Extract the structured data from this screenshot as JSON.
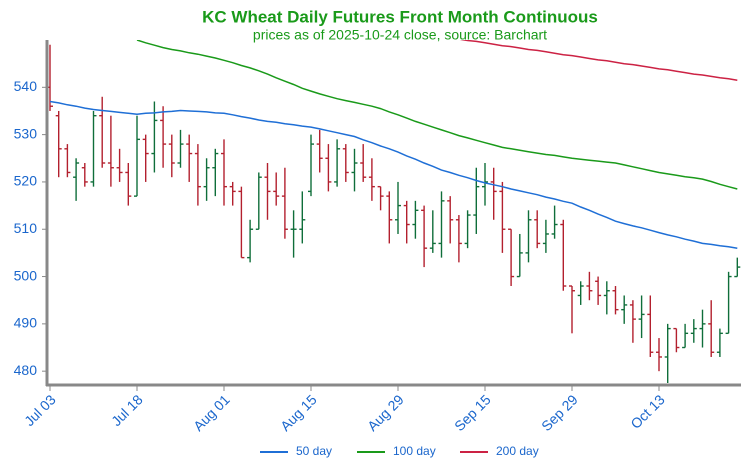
{
  "chart_data": {
    "type": "ohlc",
    "title": "KC Wheat Daily Futures Front Month Continuous",
    "subtitle": "prices as of 2025-10-24 close, source: Barchart",
    "categories": [
      "Jul 03",
      null,
      null,
      null,
      null,
      null,
      null,
      null,
      null,
      null,
      "Jul 18",
      null,
      null,
      null,
      null,
      null,
      null,
      null,
      null,
      null,
      "Aug 01",
      null,
      null,
      null,
      null,
      null,
      null,
      null,
      null,
      null,
      "Aug 15",
      null,
      null,
      null,
      null,
      null,
      null,
      null,
      null,
      null,
      "Aug 29",
      null,
      null,
      null,
      null,
      null,
      null,
      null,
      null,
      null,
      "Sep 15",
      null,
      null,
      null,
      null,
      null,
      null,
      null,
      null,
      null,
      "Sep 29",
      null,
      null,
      null,
      null,
      null,
      null,
      null,
      null,
      null,
      "Oct 13",
      null,
      null,
      null,
      null,
      null,
      null,
      null,
      null,
      null
    ],
    "open": [
      540,
      534,
      527,
      521,
      523,
      520,
      534,
      524,
      523,
      522,
      517,
      529,
      526,
      533,
      528,
      524,
      528,
      526,
      519,
      523,
      526,
      519,
      518,
      504,
      510,
      521,
      518,
      517,
      510,
      510,
      518,
      528,
      525,
      520,
      527,
      522,
      524,
      521,
      519,
      517,
      512,
      515,
      511,
      514,
      506,
      507,
      516,
      512,
      507,
      513,
      519,
      520,
      518,
      510,
      500,
      505,
      512,
      507,
      509,
      511,
      498,
      496,
      498,
      499,
      496,
      497,
      493,
      494,
      491,
      492,
      484,
      483,
      489,
      485,
      488,
      489,
      490,
      484,
      488,
      500
    ],
    "high": [
      549,
      535,
      528,
      525,
      524,
      535,
      538,
      534,
      527,
      524,
      534,
      530,
      537,
      536,
      530,
      531,
      530,
      528,
      525,
      527,
      529,
      520,
      519,
      512,
      522,
      524,
      522,
      523,
      514,
      518,
      530,
      531,
      528,
      529,
      528,
      527,
      528,
      525,
      519,
      518,
      520,
      516,
      516,
      515,
      514,
      518,
      517,
      513,
      514,
      523,
      524,
      523,
      520,
      510,
      509,
      514,
      514,
      512,
      515,
      512,
      498,
      499,
      501,
      500,
      499,
      498,
      496,
      495,
      496,
      496,
      487,
      490,
      489,
      490,
      491,
      493,
      495,
      489,
      501,
      504
    ],
    "low": [
      535,
      521,
      521,
      516,
      519,
      519,
      523,
      519,
      520,
      515,
      517,
      520,
      522,
      523,
      521,
      523,
      520,
      515,
      516,
      517,
      515,
      515,
      504,
      503,
      510,
      512,
      515,
      508,
      504,
      507,
      517,
      522,
      518,
      519,
      520,
      518,
      520,
      516,
      514,
      507,
      509,
      507,
      508,
      502,
      505,
      504,
      507,
      503,
      506,
      509,
      515,
      512,
      505,
      498,
      500,
      503,
      506,
      505,
      508,
      497,
      488,
      494,
      495,
      494,
      492,
      492,
      490,
      486,
      487,
      483,
      480,
      477,
      484,
      485,
      486,
      485,
      483,
      483,
      488,
      500
    ],
    "close": [
      536,
      527,
      522,
      524,
      520,
      534,
      524,
      523,
      522,
      517,
      529,
      526,
      533,
      528,
      524,
      528,
      526,
      519,
      523,
      526,
      519,
      518,
      504,
      510,
      521,
      518,
      517,
      510,
      510,
      512,
      528,
      525,
      520,
      527,
      522,
      524,
      521,
      519,
      517,
      512,
      515,
      511,
      514,
      506,
      507,
      516,
      512,
      507,
      513,
      519,
      520,
      518,
      510,
      500,
      505,
      512,
      507,
      509,
      511,
      498,
      497,
      498,
      497,
      496,
      497,
      493,
      494,
      491,
      492,
      484,
      483,
      489,
      485,
      488,
      489,
      490,
      484,
      488,
      500,
      502
    ],
    "up_color": "#0f6e3a",
    "down_color": "#b3202e",
    "series": [
      {
        "name": "50 day",
        "color": "#1f6fd6",
        "values": [
          537,
          536.7,
          536.3,
          536,
          535.6,
          535.3,
          535.1,
          534.9,
          534.7,
          534.5,
          534.3,
          534.5,
          534.6,
          534.8,
          534.9,
          535.1,
          535,
          534.9,
          534.8,
          534.6,
          534.5,
          534.2,
          533.8,
          533.5,
          533.1,
          532.8,
          532.6,
          532.3,
          532.1,
          531.8,
          531.6,
          531.2,
          530.8,
          530.4,
          530,
          529.6,
          528.9,
          528.3,
          527.6,
          527,
          526.3,
          525.5,
          524.8,
          524,
          523.3,
          522.5,
          522,
          521.4,
          520.9,
          520.3,
          519.8,
          519.4,
          519,
          518.5,
          518.1,
          517.7,
          517.3,
          516.8,
          516.4,
          515.9,
          515.5,
          514.7,
          514,
          513.2,
          512.5,
          511.7,
          511.2,
          510.7,
          510.3,
          509.8,
          509.3,
          508.8,
          508.4,
          507.9,
          507.5,
          507,
          506.8,
          506.5,
          506.3,
          506
        ]
      },
      {
        "name": "100 day",
        "color": "#1a9a1a",
        "values": [
          null,
          null,
          null,
          null,
          null,
          null,
          null,
          null,
          null,
          null,
          550,
          549.4,
          548.9,
          548.4,
          548,
          547.7,
          547.3,
          547,
          546.6,
          546.2,
          545.7,
          545.2,
          544.6,
          544.1,
          543.5,
          542.8,
          542,
          541.3,
          540.6,
          539.8,
          539.2,
          538.6,
          538.1,
          537.6,
          537.2,
          536.8,
          536.4,
          536,
          535.5,
          534.8,
          534.2,
          533.5,
          532.8,
          532.2,
          531.6,
          531,
          530.4,
          529.8,
          529.3,
          528.8,
          528.3,
          527.8,
          527.3,
          527,
          526.7,
          526.4,
          526.1,
          525.8,
          525.6,
          525.3,
          525,
          524.8,
          524.6,
          524.4,
          524.2,
          524,
          523.6,
          523.2,
          522.8,
          522.4,
          522,
          521.7,
          521.4,
          521.1,
          520.9,
          520.6,
          520.1,
          519.5,
          519,
          518.5
        ]
      },
      {
        "name": "200 day",
        "color": "#cc2244",
        "values": [
          null,
          null,
          null,
          null,
          null,
          null,
          null,
          null,
          null,
          null,
          null,
          null,
          null,
          null,
          null,
          null,
          null,
          null,
          null,
          null,
          null,
          null,
          null,
          null,
          null,
          null,
          null,
          null,
          null,
          null,
          null,
          null,
          null,
          null,
          null,
          null,
          null,
          null,
          null,
          null,
          null,
          null,
          null,
          null,
          null,
          null,
          null,
          550.2,
          549.9,
          549.7,
          549.4,
          549.1,
          548.8,
          548.6,
          548.3,
          548,
          547.8,
          547.5,
          547.2,
          546.9,
          546.7,
          546.4,
          546.1,
          545.8,
          545.6,
          545.3,
          545,
          544.8,
          544.5,
          544.2,
          543.9,
          543.7,
          543.4,
          543.1,
          542.8,
          542.6,
          542.3,
          542,
          541.8,
          541.5
        ]
      }
    ],
    "ylim": [
      477.5,
      550
    ],
    "yticks": [
      480,
      490,
      500,
      510,
      520,
      530,
      540
    ],
    "legend": "bottom"
  }
}
